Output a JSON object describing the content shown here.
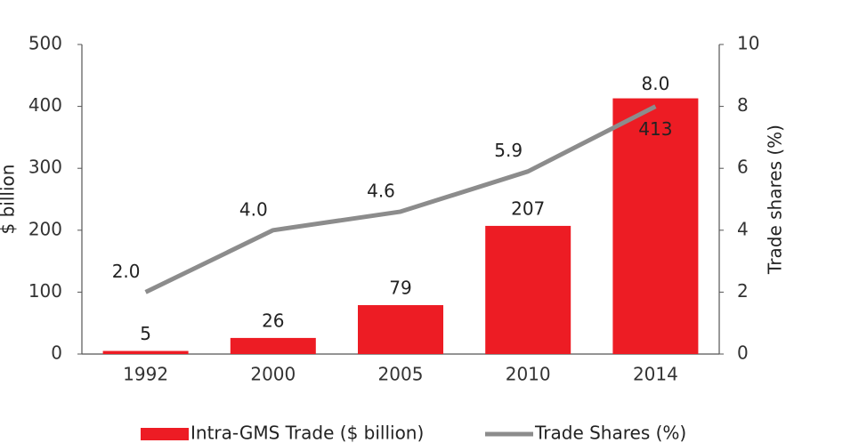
{
  "chart_data": {
    "type": "bar",
    "categories": [
      "1992",
      "2000",
      "2005",
      "2010",
      "2014"
    ],
    "series": [
      {
        "name": "Intra-GMS Trade ($ billion)",
        "type": "bar",
        "color": "#ed1c24",
        "values": [
          5,
          26,
          79,
          207,
          413
        ]
      },
      {
        "name": "Trade Shares (%)",
        "type": "line",
        "axis": "y2",
        "color": "#8c8c8c",
        "values": [
          2.0,
          4.0,
          4.6,
          5.9,
          8.0
        ],
        "value_labels": [
          "2.0",
          "4.0",
          "4.6",
          "5.9",
          "8.0"
        ]
      }
    ],
    "ylabel": "$ billion",
    "y2label": "Trade shares (%)",
    "ylim": [
      0,
      500
    ],
    "yticks": [
      0,
      100,
      200,
      300,
      400,
      500
    ],
    "y2lim": [
      0,
      10
    ],
    "y2ticks": [
      0,
      2,
      4,
      6,
      8,
      10
    ],
    "legend": "bottom"
  }
}
